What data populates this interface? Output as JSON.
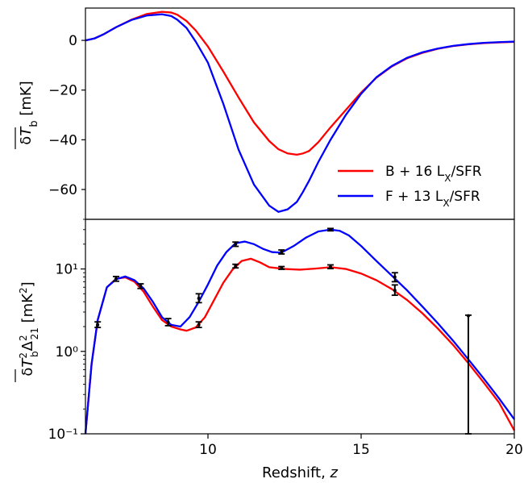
{
  "chart_data": [
    {
      "type": "line",
      "panel": "top",
      "xlabel": "",
      "ylabel": "δT̄b [mK]",
      "xlim": [
        6,
        20
      ],
      "ylim": [
        -72,
        13
      ],
      "yticks": [
        0,
        -20,
        -40,
        -60
      ],
      "ytick_labels": [
        "0",
        "−20",
        "−40",
        "−60"
      ],
      "series": [
        {
          "name": "B + 16 LX/SFR",
          "color": "#ff0000",
          "x": [
            6.0,
            6.3,
            6.6,
            7.0,
            7.5,
            8.0,
            8.5,
            8.8,
            9.0,
            9.3,
            9.6,
            10.0,
            10.5,
            11.0,
            11.5,
            12.0,
            12.3,
            12.6,
            12.9,
            13.1,
            13.3,
            13.6,
            14.0,
            14.5,
            15.0,
            15.5,
            16.0,
            16.5,
            17.0,
            17.5,
            18.0,
            18.5,
            19.0,
            19.5,
            20.0
          ],
          "y": [
            0,
            0.8,
            2.5,
            5.3,
            8.3,
            10.6,
            11.5,
            11.2,
            10.3,
            7.8,
            4,
            -2.5,
            -12.5,
            -23,
            -33,
            -40.5,
            -43.8,
            -45.5,
            -46,
            -45.5,
            -44.5,
            -41,
            -35,
            -28,
            -21,
            -15,
            -10.5,
            -7.2,
            -5,
            -3.4,
            -2.3,
            -1.6,
            -1.1,
            -0.8,
            -0.6
          ]
        },
        {
          "name": "F + 13 LX/SFR",
          "color": "#0000ff",
          "x": [
            6.0,
            6.3,
            6.6,
            7.0,
            7.5,
            8.0,
            8.5,
            8.8,
            9.0,
            9.3,
            9.6,
            10.0,
            10.5,
            11.0,
            11.5,
            12.0,
            12.3,
            12.6,
            12.9,
            13.1,
            13.3,
            13.6,
            14.0,
            14.5,
            15.0,
            15.5,
            16.0,
            16.5,
            17.0,
            17.5,
            18.0,
            18.5,
            19.0,
            19.5,
            20.0
          ],
          "y": [
            0,
            0.8,
            2.5,
            5.3,
            8.2,
            10,
            10.5,
            9.8,
            8.3,
            5,
            -0.5,
            -9,
            -25.5,
            -44,
            -58,
            -66.5,
            -69,
            -68,
            -65,
            -61,
            -56.5,
            -49,
            -40,
            -30,
            -21.5,
            -14.8,
            -10.3,
            -7,
            -4.8,
            -3.3,
            -2.2,
            -1.5,
            -1,
            -0.7,
            -0.5
          ]
        }
      ],
      "legend": {
        "position": "lower-right",
        "entries": [
          {
            "label": "B + 16 Lₓ/SFR",
            "color": "#ff0000"
          },
          {
            "label": "F + 13 Lₓ/SFR",
            "color": "#0000ff"
          }
        ]
      }
    },
    {
      "type": "line",
      "panel": "bottom",
      "xlabel": "Redshift, z",
      "ylabel": "δT̄b² Δ²21 [mK²]",
      "xlim": [
        6,
        20
      ],
      "ylim": [
        0.1,
        40
      ],
      "yscale": "log",
      "xticks": [
        10,
        15,
        20
      ],
      "xtick_labels": [
        "10",
        "15",
        "20"
      ],
      "yticks": [
        0.1,
        1,
        10
      ],
      "ytick_labels": [
        "10⁻¹",
        "10⁰",
        "10¹"
      ],
      "series": [
        {
          "name": "B + 16 LX/SFR",
          "color": "#ff0000",
          "x": [
            6.0,
            6.2,
            6.4,
            6.7,
            7.0,
            7.3,
            7.6,
            7.9,
            8.2,
            8.5,
            8.8,
            9.1,
            9.3,
            9.6,
            9.9,
            10.2,
            10.5,
            10.8,
            11.1,
            11.4,
            11.7,
            12.0,
            12.5,
            13.0,
            13.5,
            14.0,
            14.5,
            15.0,
            15.5,
            16.0,
            16.5,
            17.0,
            17.5,
            18.0,
            18.5,
            19.0,
            19.5,
            20.0
          ],
          "y": [
            0.1,
            0.7,
            2.4,
            6,
            7.6,
            7.9,
            7,
            5.3,
            3.5,
            2.4,
            2.0,
            1.85,
            1.78,
            1.95,
            2.6,
            4.2,
            6.8,
            9.8,
            12.5,
            13.3,
            12,
            10.5,
            10,
            9.8,
            10.1,
            10.5,
            10,
            8.8,
            7.3,
            5.7,
            4.2,
            2.9,
            1.9,
            1.2,
            0.72,
            0.42,
            0.24,
            0.11
          ]
        },
        {
          "name": "F + 13 LX/SFR",
          "color": "#0000ff",
          "x": [
            6.0,
            6.2,
            6.4,
            6.7,
            7.0,
            7.3,
            7.6,
            7.9,
            8.2,
            8.5,
            8.8,
            9.1,
            9.4,
            9.7,
            10.0,
            10.3,
            10.6,
            10.9,
            11.2,
            11.5,
            11.8,
            12.1,
            12.4,
            12.8,
            13.2,
            13.6,
            14.0,
            14.3,
            14.6,
            15.0,
            15.5,
            16.0,
            16.5,
            17.0,
            17.5,
            18.0,
            18.5,
            19.0,
            19.5,
            20.0
          ],
          "y": [
            0.1,
            0.7,
            2.4,
            6,
            7.5,
            8.1,
            7.3,
            5.8,
            4,
            2.6,
            2.1,
            2.0,
            2.6,
            4,
            6.5,
            11,
            16,
            20.5,
            21.5,
            20,
            17.5,
            16,
            15.8,
            19,
            24,
            28.5,
            30,
            29,
            25.5,
            19,
            12.5,
            8.3,
            5.5,
            3.5,
            2.2,
            1.35,
            0.8,
            0.47,
            0.27,
            0.15
          ]
        }
      ],
      "errorbars": {
        "color": "#000000",
        "x": [
          6.4,
          7.0,
          7.8,
          8.7,
          9.7,
          10.9,
          12.4,
          14.0,
          16.1,
          18.5
        ],
        "y": [
          2.1,
          7.6,
          6.2,
          2.25,
          2.1,
          20,
          16,
          30,
          8,
          2.7
        ],
        "ylow": [
          1.95,
          7.1,
          5.8,
          2.05,
          1.95,
          18.8,
          15.2,
          29,
          7,
          0.1
        ],
        "yhigh": [
          2.28,
          8.1,
          6.6,
          2.5,
          2.28,
          21.2,
          17,
          31,
          9,
          2.75
        ]
      },
      "errorbars_2": {
        "color": "#000000",
        "x": [
          10.9,
          12.4,
          14.0,
          16.1
        ],
        "y": [
          10.8,
          10.3,
          10.6,
          5.5
        ],
        "ylow": [
          10.3,
          9.9,
          10.1,
          4.8
        ],
        "yhigh": [
          11.4,
          10.7,
          11.2,
          6.4
        ]
      },
      "errorbars_3": {
        "color": "#000000",
        "x": [
          9.7
        ],
        "y": [
          4.4
        ],
        "ylow": [
          3.9
        ],
        "yhigh": [
          5.0
        ]
      }
    }
  ]
}
